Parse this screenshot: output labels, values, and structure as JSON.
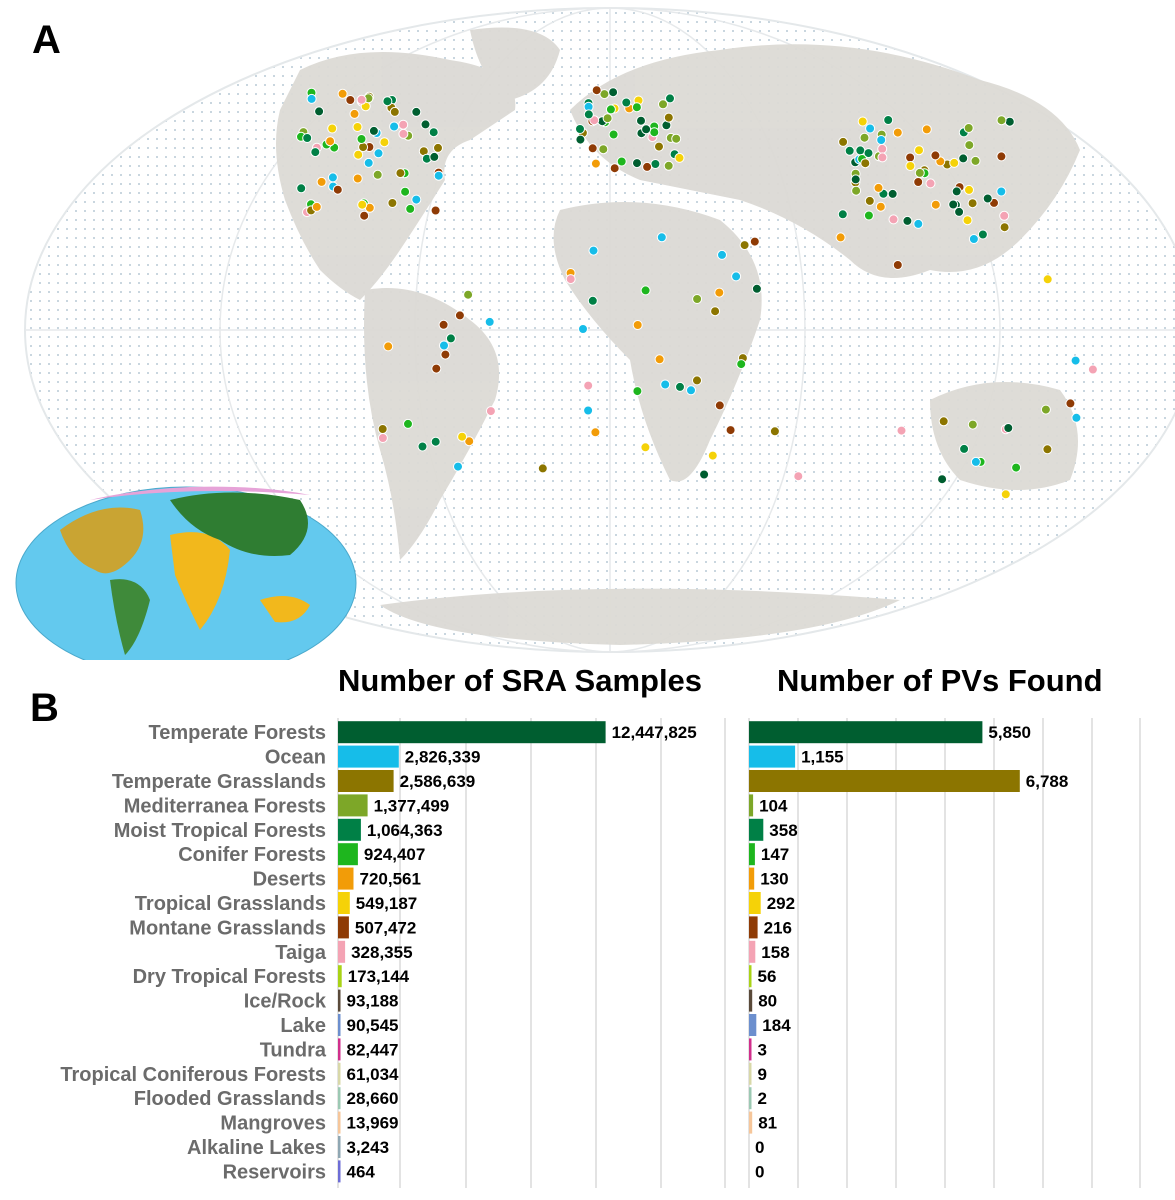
{
  "panels": {
    "a": "A",
    "b": "B"
  },
  "map": {
    "name": "Sample location world map",
    "land_color": "#dcdad5",
    "ocean_grid_color": "#c9d6df",
    "inset_ocean_color": "#63c9ee"
  },
  "chart_data": [
    {
      "type": "bar",
      "orientation": "horizontal",
      "title": "Number of SRA Samples",
      "categories": [
        "Temperate Forests",
        "Ocean",
        "Temperate Grasslands",
        "Mediterranea Forests",
        "Moist Tropical Forests",
        "Conifer Forests",
        "Deserts",
        "Tropical Grasslands",
        "Montane Grasslands",
        "Taiga",
        "Dry Tropical Forests",
        "Ice/Rock",
        "Lake",
        "Tundra",
        "Tropical Coniferous Forests",
        "Flooded Grasslands",
        "Mangroves",
        "Alkaline Lakes",
        "Reservoirs"
      ],
      "values": [
        12447825,
        2826339,
        2586639,
        1377499,
        1064363,
        924407,
        720561,
        549187,
        507472,
        328355,
        173144,
        93188,
        90545,
        82447,
        61034,
        28660,
        13969,
        3243,
        464
      ],
      "value_labels": [
        "12,447,825",
        "2,826,339",
        "2,586,639",
        "1,377,499",
        "1,064,363",
        "924,407",
        "720,561",
        "549,187",
        "507,472",
        "328,355",
        "173,144",
        "93,188",
        "90,545",
        "82,447",
        "61,034",
        "28,660",
        "13,969",
        "3,243",
        "464"
      ],
      "xlim": [
        0,
        18000000
      ],
      "grid": true
    },
    {
      "type": "bar",
      "orientation": "horizontal",
      "title": "Number of PVs Found",
      "categories": [
        "Temperate Forests",
        "Ocean",
        "Temperate Grasslands",
        "Mediterranea Forests",
        "Moist Tropical Forests",
        "Conifer Forests",
        "Deserts",
        "Tropical Grasslands",
        "Montane Grasslands",
        "Taiga",
        "Dry Tropical Forests",
        "Ice/Rock",
        "Lake",
        "Tundra",
        "Tropical Coniferous Forests",
        "Flooded Grasslands",
        "Mangroves",
        "Alkaline Lakes",
        "Reservoirs"
      ],
      "values": [
        5850,
        1155,
        6788,
        104,
        358,
        147,
        130,
        292,
        216,
        158,
        56,
        80,
        184,
        3,
        9,
        2,
        81,
        0,
        0
      ],
      "value_labels": [
        "5,850",
        "1,155",
        "6,788",
        "104",
        "358",
        "147",
        "130",
        "292",
        "216",
        "158",
        "56",
        "80",
        "184",
        "3",
        "9",
        "2",
        "81",
        "0",
        "0"
      ],
      "xlim": [
        0,
        9800
      ],
      "grid": true
    }
  ],
  "colors": [
    "#005e30",
    "#16bde9",
    "#8c7500",
    "#7da728",
    "#008046",
    "#1eb61e",
    "#f29c08",
    "#f5d208",
    "#8f3b05",
    "#f4a3b4",
    "#a9d316",
    "#5a4a3a",
    "#6c8fce",
    "#d12f8c",
    "#d8d8a8",
    "#9cc9b3",
    "#f6c69a",
    "#8fa7b3",
    "#6d6dd6"
  ]
}
